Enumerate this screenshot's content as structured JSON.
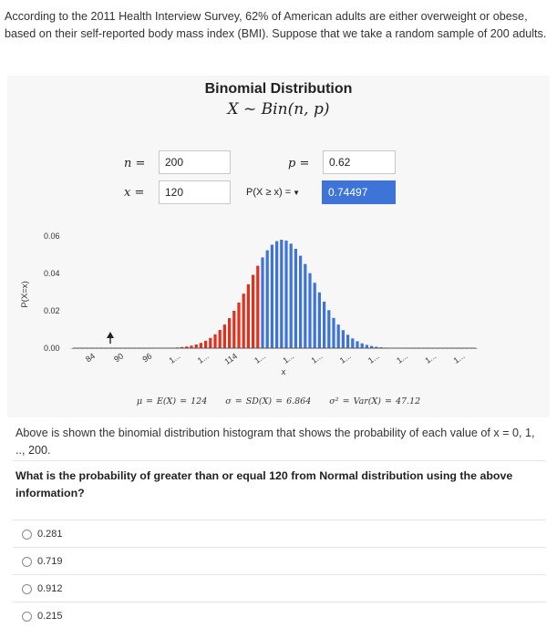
{
  "intro": {
    "text": "According to the 2011 Health Interview Survey, 62% of American adults are either overweight or obese, based on their self-reported body mass index (BMI). Suppose that we take a random sample of 200 adults."
  },
  "applet": {
    "title": "Binomial Distribution",
    "subtitle": "X ~ Bin(n, p)",
    "n_label": "n =",
    "n_value": "200",
    "p_label": "p =",
    "p_value": "0.62",
    "x_label": "x =",
    "x_value": "120",
    "prob_select": "P(X ≥ x) =",
    "prob_result": "0.74497",
    "stats": {
      "mean": "μ = E(X) = 124",
      "sd": "σ = SD(X) = 6.864",
      "var": "σ² = Var(X) = 47.12"
    }
  },
  "chart_data": {
    "type": "bar",
    "n": 200,
    "p": 0.62,
    "ylabel": "P(X=x)",
    "xlabel": "x",
    "ylim": [
      0,
      0.06
    ],
    "y_ticks": [
      "0.06",
      "0.04",
      "0.02",
      "0.00"
    ],
    "x_ticks": [
      "84",
      "90",
      "96",
      "1...",
      "1...",
      "114",
      "1...",
      "1...",
      "1...",
      "1...",
      "1...",
      "1...",
      "1...",
      "1..."
    ],
    "x_range": [
      80,
      165
    ],
    "bar_colors": {
      "below_x": "#e0301e",
      "at_or_above_x": "#3e73d8"
    },
    "grid": false
  },
  "description": {
    "text": "Above is shown the binomial distribution histogram that shows the probability of each value of x = 0, 1, .., 200."
  },
  "question": {
    "text": "What is the probability of greater than or equal 120 from Normal distribution using the above information?"
  },
  "options": [
    "0.281",
    "0.719",
    "0.912",
    "0.215"
  ]
}
